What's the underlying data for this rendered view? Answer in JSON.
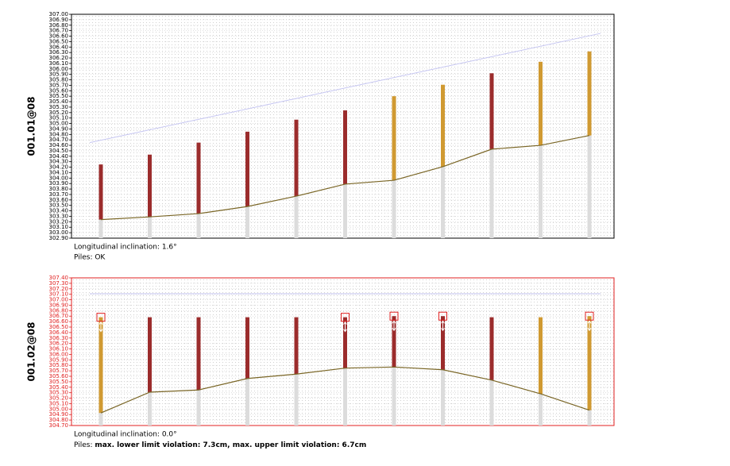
{
  "chart_data": [
    {
      "type": "pile",
      "label": "001.01@08",
      "axis_color": "#000000",
      "ylim": [
        302.9,
        307.0
      ],
      "yticks": [
        {
          "value": 302.9,
          "label": "302.90"
        },
        {
          "value": 303.0,
          "label": "303.00"
        },
        {
          "value": 303.1,
          "label": "303.10"
        },
        {
          "value": 303.2,
          "label": "303.20"
        },
        {
          "value": 303.3,
          "label": "303.30"
        },
        {
          "value": 303.4,
          "label": "303.40"
        },
        {
          "value": 303.5,
          "label": "303.50"
        },
        {
          "value": 303.6,
          "label": "303.60"
        },
        {
          "value": 303.7,
          "label": "303.70"
        },
        {
          "value": 303.8,
          "label": "303.80"
        },
        {
          "value": 303.9,
          "label": "303.90"
        },
        {
          "value": 304.0,
          "label": "304.00"
        },
        {
          "value": 304.1,
          "label": "304.10"
        },
        {
          "value": 304.2,
          "label": "304.20"
        },
        {
          "value": 304.3,
          "label": "304.30"
        },
        {
          "value": 304.4,
          "label": "304.40"
        },
        {
          "value": 304.5,
          "label": "304.50"
        },
        {
          "value": 304.6,
          "label": "304.60"
        },
        {
          "value": 304.7,
          "label": "304.70"
        },
        {
          "value": 304.8,
          "label": "304.80"
        },
        {
          "value": 304.9,
          "label": "304.90"
        },
        {
          "value": 305.0,
          "label": "305.00"
        },
        {
          "value": 305.1,
          "label": "305.10"
        },
        {
          "value": 305.2,
          "label": "305.20"
        },
        {
          "value": 305.3,
          "label": "305.30"
        },
        {
          "value": 305.4,
          "label": "305.40"
        },
        {
          "value": 305.5,
          "label": "305.50"
        },
        {
          "value": 305.6,
          "label": "305.60"
        },
        {
          "value": 305.7,
          "label": "305.70"
        },
        {
          "value": 305.8,
          "label": "305.80"
        },
        {
          "value": 305.9,
          "label": "305.90"
        },
        {
          "value": 306.0,
          "label": "306.00"
        },
        {
          "value": 306.1,
          "label": "306.10"
        },
        {
          "value": 306.2,
          "label": "306.20"
        },
        {
          "value": 306.3,
          "label": "306.30"
        },
        {
          "value": 306.4,
          "label": "306.40"
        },
        {
          "value": 306.5,
          "label": "306.50"
        },
        {
          "value": 306.6,
          "label": "306.60"
        },
        {
          "value": 306.7,
          "label": "306.70"
        },
        {
          "value": 306.8,
          "label": "306.80"
        },
        {
          "value": 306.9,
          "label": "306.90"
        },
        {
          "value": 307.0,
          "label": "307.00"
        }
      ],
      "tops": [
        304.25,
        304.43,
        304.65,
        304.85,
        305.07,
        305.24,
        305.5,
        305.71,
        305.92,
        306.13,
        306.32
      ],
      "ground": [
        303.24,
        303.29,
        303.35,
        303.48,
        303.67,
        303.89,
        303.96,
        304.21,
        304.53,
        304.6,
        304.78
      ],
      "colors": [
        "#9b2c2c",
        "#9b2c2c",
        "#9b2c2c",
        "#9b2c2c",
        "#9b2c2c",
        "#9b2c2c",
        "#d09a32",
        "#d09a32",
        "#9b2c2c",
        "#d09a32",
        "#d09a32"
      ],
      "flagged": [
        false,
        false,
        false,
        false,
        false,
        false,
        false,
        false,
        false,
        false,
        false
      ],
      "limit": [
        304.65,
        306.65
      ],
      "notes": [
        "Longitudinal inclination: 1.6°",
        "Piles: OK"
      ]
    },
    {
      "type": "pile",
      "label": "001.02@08",
      "axis_color": "#e02020",
      "ylim": [
        304.7,
        307.4
      ],
      "yticks": [
        {
          "value": 304.7,
          "label": "304.70"
        },
        {
          "value": 304.8,
          "label": "304.80"
        },
        {
          "value": 304.9,
          "label": "304.90"
        },
        {
          "value": 305.0,
          "label": "305.00"
        },
        {
          "value": 305.1,
          "label": "305.10"
        },
        {
          "value": 305.2,
          "label": "305.20"
        },
        {
          "value": 305.3,
          "label": "305.30"
        },
        {
          "value": 305.4,
          "label": "305.40"
        },
        {
          "value": 305.5,
          "label": "305.50"
        },
        {
          "value": 305.6,
          "label": "305.60"
        },
        {
          "value": 305.7,
          "label": "305.70"
        },
        {
          "value": 305.8,
          "label": "305.80"
        },
        {
          "value": 305.9,
          "label": "305.90"
        },
        {
          "value": 306.0,
          "label": "306.00"
        },
        {
          "value": 306.1,
          "label": "306.10"
        },
        {
          "value": 306.2,
          "label": "306.20"
        },
        {
          "value": 306.3,
          "label": "306.30"
        },
        {
          "value": 306.4,
          "label": "306.40"
        },
        {
          "value": 306.5,
          "label": "306.50"
        },
        {
          "value": 306.6,
          "label": "306.60"
        },
        {
          "value": 306.7,
          "label": "306.70"
        },
        {
          "value": 306.8,
          "label": "306.80"
        },
        {
          "value": 306.9,
          "label": "306.90"
        },
        {
          "value": 307.0,
          "label": "307.00"
        },
        {
          "value": 307.1,
          "label": "307.10"
        },
        {
          "value": 307.2,
          "label": "307.20"
        },
        {
          "value": 307.3,
          "label": "307.30"
        },
        {
          "value": 307.4,
          "label": "307.40"
        }
      ],
      "tops": [
        306.68,
        306.68,
        306.68,
        306.68,
        306.68,
        306.68,
        306.7,
        306.7,
        306.68,
        306.68,
        306.7
      ],
      "ground": [
        304.93,
        305.31,
        305.35,
        305.56,
        305.64,
        305.75,
        305.77,
        305.72,
        305.53,
        305.28,
        304.98
      ],
      "colors": [
        "#d09a32",
        "#9b2c2c",
        "#9b2c2c",
        "#9b2c2c",
        "#9b2c2c",
        "#9b2c2c",
        "#9b2c2c",
        "#9b2c2c",
        "#9b2c2c",
        "#d09a32",
        "#d09a32"
      ],
      "flagged": [
        true,
        false,
        false,
        false,
        false,
        true,
        true,
        true,
        false,
        false,
        true
      ],
      "limit": [
        307.11,
        307.11
      ],
      "notes": [
        "Piles: ",
        "max. lower limit violation: 7.3cm, max. upper limit violation: 6.7cm"
      ],
      "notes_inline": true
    }
  ]
}
